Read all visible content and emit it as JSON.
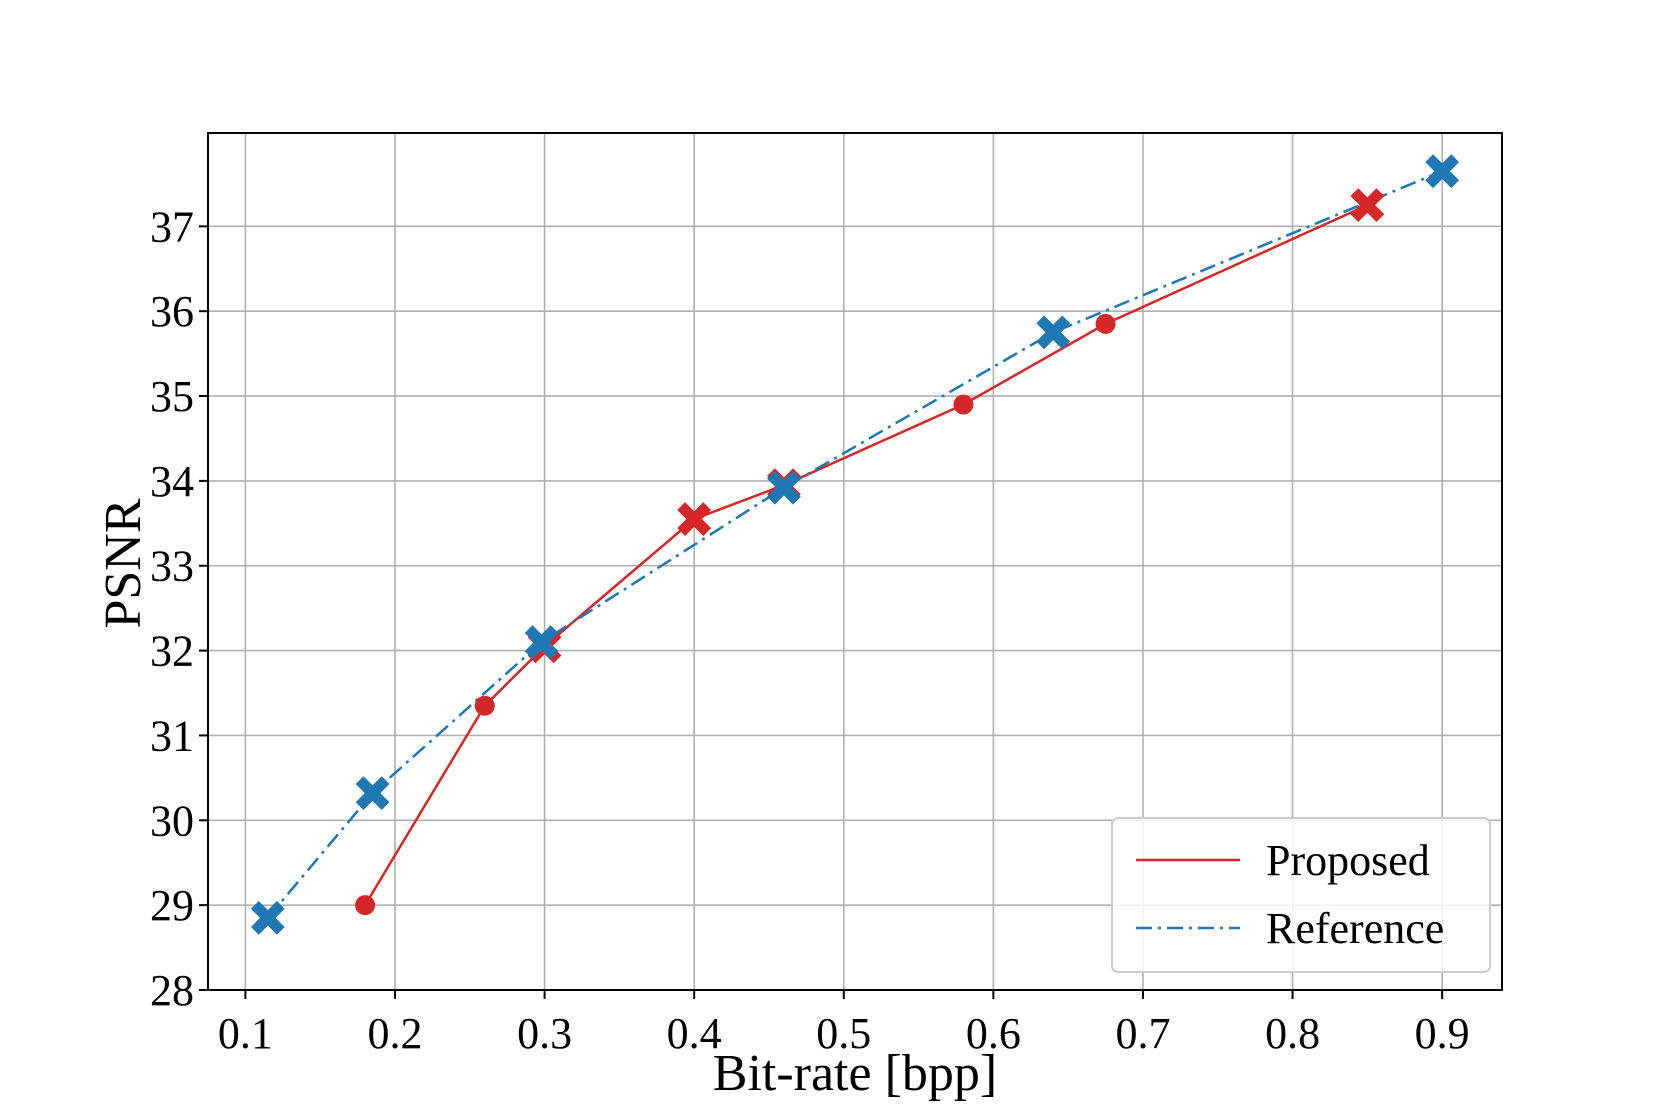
{
  "chart_data": {
    "type": "line",
    "title": "",
    "xlabel": "Bit-rate [bpp]",
    "ylabel": "PSNR",
    "xlim": [
      0.075,
      0.94
    ],
    "ylim": [
      28,
      38.1
    ],
    "xticks": [
      0.1,
      0.2,
      0.3,
      0.4,
      0.5,
      0.6,
      0.7,
      0.8,
      0.9
    ],
    "xtick_labels": [
      "0.1",
      "0.2",
      "0.3",
      "0.4",
      "0.5",
      "0.6",
      "0.7",
      "0.8",
      "0.9"
    ],
    "yticks": [
      28,
      29,
      30,
      31,
      32,
      33,
      34,
      35,
      36,
      37
    ],
    "ytick_labels": [
      "28",
      "29",
      "30",
      "31",
      "32",
      "33",
      "34",
      "35",
      "36",
      "37"
    ],
    "grid": true,
    "legend_position": "bottom-right",
    "series": [
      {
        "name": "Proposed",
        "color": "#d62728",
        "line_style": "solid",
        "points": [
          {
            "x": 0.18,
            "y": 29.0,
            "marker": "circle"
          },
          {
            "x": 0.26,
            "y": 31.35,
            "marker": "circle"
          },
          {
            "x": 0.3,
            "y": 32.05,
            "marker": "x"
          },
          {
            "x": 0.4,
            "y": 33.55,
            "marker": "x"
          },
          {
            "x": 0.46,
            "y": 33.95,
            "marker": "x"
          },
          {
            "x": 0.58,
            "y": 34.9,
            "marker": "circle"
          },
          {
            "x": 0.675,
            "y": 35.85,
            "marker": "circle"
          },
          {
            "x": 0.85,
            "y": 37.25,
            "marker": "x"
          }
        ]
      },
      {
        "name": "Reference",
        "color": "#1f77b4",
        "line_style": "dashdot",
        "points": [
          {
            "x": 0.115,
            "y": 28.85,
            "marker": "x"
          },
          {
            "x": 0.185,
            "y": 30.32,
            "marker": "x"
          },
          {
            "x": 0.298,
            "y": 32.1,
            "marker": "x"
          },
          {
            "x": 0.46,
            "y": 33.92,
            "marker": "x"
          },
          {
            "x": 0.64,
            "y": 35.75,
            "marker": "x"
          },
          {
            "x": 0.9,
            "y": 37.65,
            "marker": "x"
          }
        ]
      }
    ]
  }
}
